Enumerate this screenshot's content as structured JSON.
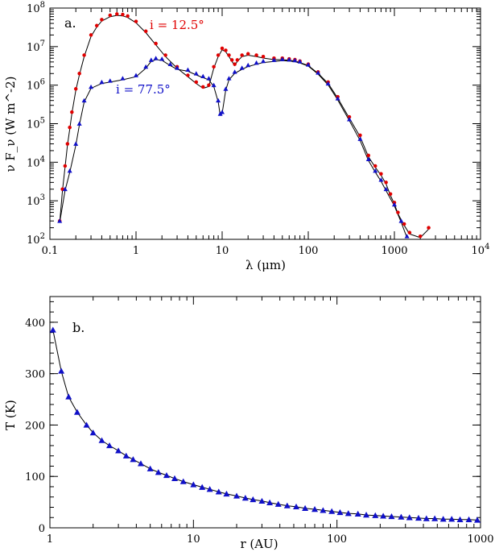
{
  "chart_data": [
    {
      "type": "scatter",
      "panel": "a.",
      "xlabel": "λ (μm)",
      "ylabel": "ν F_ν (W m^-2)",
      "xscale": "log",
      "yscale": "log",
      "xlim": [
        0.1,
        10000
      ],
      "ylim": [
        100,
        100000000
      ],
      "xticks": [
        "0.1",
        "1",
        "10",
        "100",
        "1000",
        "10^4"
      ],
      "yticks": [
        "10^2",
        "10^3",
        "10^4",
        "10^5",
        "10^6",
        "10^7",
        "10^8"
      ],
      "grid": false,
      "annotations": [
        {
          "text": "i = 12.5°",
          "color": "#e00000"
        },
        {
          "text": "i = 77.5°",
          "color": "#1010c8"
        }
      ],
      "series": [
        {
          "marker": "circle",
          "color": "#e00000",
          "x": [
            0.13,
            0.14,
            0.15,
            0.16,
            0.17,
            0.18,
            0.2,
            0.22,
            0.25,
            0.3,
            0.35,
            0.4,
            0.5,
            0.6,
            0.7,
            0.8,
            1.0,
            1.3,
            1.7,
            2.2,
            3.0,
            4.0,
            5.0,
            6.0,
            7.0,
            8.0,
            9.0,
            10,
            11,
            12,
            13,
            14,
            15,
            17,
            20,
            25,
            30,
            40,
            50,
            60,
            70,
            80,
            100,
            130,
            170,
            220,
            300,
            400,
            500,
            600,
            700,
            800,
            900,
            1000,
            1100,
            1300,
            1500,
            2000,
            2500
          ],
          "y": [
            300,
            2000,
            8000,
            30000,
            80000,
            200000,
            800000,
            2000000,
            6000000,
            20000000,
            35000000,
            50000000,
            65000000,
            70000000,
            68000000,
            62000000,
            45000000,
            25000000,
            12000000,
            6000000,
            3000000,
            1800000,
            1200000,
            900000,
            1000000,
            3000000,
            6000000,
            9000000,
            8000000,
            6000000,
            4500000,
            3500000,
            4500000,
            6000000,
            6500000,
            6000000,
            5500000,
            5000000,
            5000000,
            4800000,
            4600000,
            4200000,
            3500000,
            2200000,
            1200000,
            500000,
            150000,
            50000,
            15000,
            8000,
            5000,
            3000,
            1500,
            900,
            500,
            250,
            150,
            120,
            200
          ]
        },
        {
          "marker": "triangle",
          "color": "#1010c8",
          "x": [
            0.13,
            0.15,
            0.17,
            0.2,
            0.22,
            0.25,
            0.3,
            0.4,
            0.5,
            0.7,
            1.0,
            1.3,
            1.5,
            1.7,
            2.0,
            2.5,
            3.0,
            4.0,
            5.0,
            6.0,
            7.0,
            8.0,
            9.0,
            9.5,
            10,
            11,
            12,
            14,
            17,
            20,
            25,
            30,
            40,
            50,
            60,
            70,
            80,
            100,
            130,
            170,
            220,
            300,
            400,
            500,
            600,
            700,
            800,
            1000,
            1200,
            1400
          ],
          "y": [
            300,
            2000,
            6000,
            30000,
            100000,
            400000,
            900000,
            1200000,
            1300000,
            1500000,
            1800000,
            3000000,
            4500000,
            5000000,
            4800000,
            3500000,
            2800000,
            2500000,
            2000000,
            1700000,
            1500000,
            1000000,
            400000,
            180000,
            200000,
            800000,
            1500000,
            2200000,
            2800000,
            3300000,
            3800000,
            4200000,
            4500000,
            4700000,
            4600000,
            4400000,
            4100000,
            3400000,
            2100000,
            1100000,
            450000,
            130000,
            40000,
            12000,
            6000,
            3500,
            2000,
            800,
            300,
            120
          ]
        }
      ]
    },
    {
      "type": "scatter",
      "panel": "b.",
      "xlabel": "r (AU)",
      "ylabel": "T (K)",
      "xscale": "log",
      "xlim": [
        1,
        1000
      ],
      "ylim": [
        0,
        450
      ],
      "xticks": [
        "1",
        "10",
        "100",
        "1000"
      ],
      "yticks": [
        "0",
        "100",
        "200",
        "300",
        "400"
      ],
      "grid": false,
      "series": [
        {
          "marker": "triangle",
          "color": "#1010c8",
          "x": [
            1.05,
            1.2,
            1.35,
            1.55,
            1.8,
            2.0,
            2.3,
            2.6,
            3.0,
            3.4,
            3.8,
            4.3,
            5.0,
            5.7,
            6.5,
            7.4,
            8.5,
            10,
            11.5,
            13,
            15,
            17,
            20,
            23,
            26,
            30,
            34,
            39,
            45,
            52,
            60,
            70,
            80,
            92,
            105,
            120,
            140,
            160,
            185,
            210,
            240,
            280,
            320,
            370,
            420,
            480,
            550,
            630,
            720,
            830,
            950
          ],
          "y": [
            385,
            305,
            255,
            225,
            200,
            185,
            170,
            160,
            150,
            140,
            133,
            125,
            115,
            108,
            102,
            96,
            90,
            84,
            79,
            75,
            70,
            66,
            62,
            58,
            55,
            52,
            49,
            46,
            43,
            41,
            38,
            36,
            34,
            32,
            30,
            28,
            27,
            25,
            24,
            23,
            22,
            21,
            20,
            19,
            18,
            18,
            17,
            17,
            16,
            16,
            15
          ]
        }
      ]
    }
  ]
}
